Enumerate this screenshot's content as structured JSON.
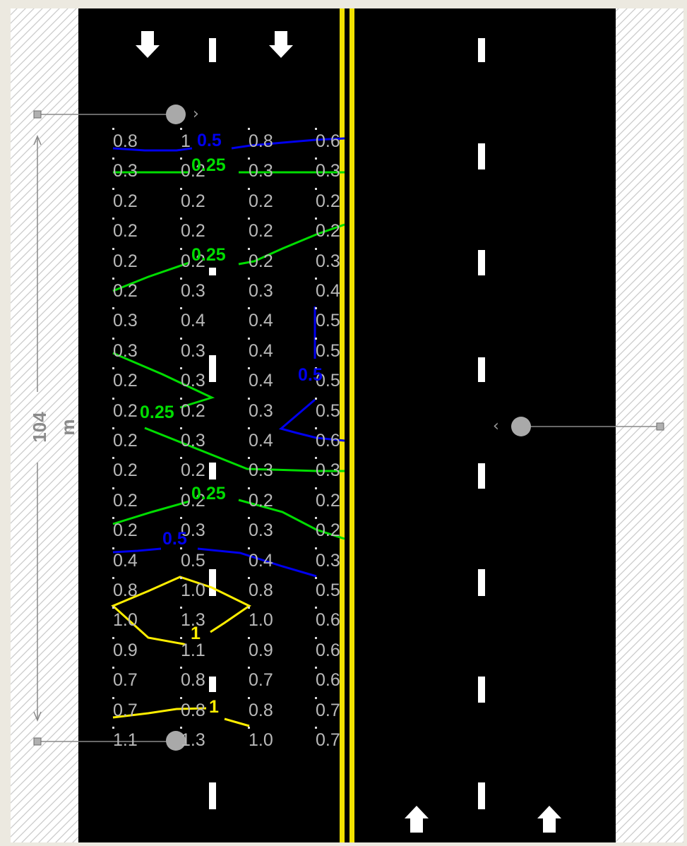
{
  "colors": {
    "road": "#000000",
    "lane_marking": "#ffffff",
    "center_line": "#f2e200",
    "shoulder_hatch": "#c9c9c9",
    "grid_value_text": "#b9b9b9",
    "contour_0_25": "#00dd00",
    "contour_0_5": "#0000ee",
    "contour_1": "#ffee00",
    "dimension": "#8a8a8a"
  },
  "dimension": {
    "label": "104 m"
  },
  "contour_labels": [
    {
      "text": "0.5",
      "level": "0.5"
    },
    {
      "text": "0.25",
      "level": "0.25"
    },
    {
      "text": "0.25",
      "level": "0.25"
    },
    {
      "text": "0.5",
      "level": "0.5"
    },
    {
      "text": "0.25",
      "level": "0.25"
    },
    {
      "text": "0.25",
      "level": "0.25"
    },
    {
      "text": "0.5",
      "level": "0.5"
    },
    {
      "text": "1",
      "level": "1"
    },
    {
      "text": "1",
      "level": "1"
    }
  ],
  "grid_rows": [
    [
      "0.8",
      "1",
      "0.8",
      "0.6"
    ],
    [
      "0.3",
      "0.2",
      "0.3",
      "0.3"
    ],
    [
      "0.2",
      "0.2",
      "0.2",
      "0.2"
    ],
    [
      "0.2",
      "0.2",
      "0.2",
      "0.2"
    ],
    [
      "0.2",
      "0.2",
      "0.2",
      "0.3"
    ],
    [
      "0.2",
      "0.3",
      "0.3",
      "0.4"
    ],
    [
      "0.3",
      "0.4",
      "0.4",
      "0.5"
    ],
    [
      "0.3",
      "0.3",
      "0.4",
      "0.5"
    ],
    [
      "0.2",
      "0.3",
      "0.4",
      "0.5"
    ],
    [
      "0.2",
      "0.2",
      "0.3",
      "0.5"
    ],
    [
      "0.2",
      "0.3",
      "0.4",
      "0.6"
    ],
    [
      "0.2",
      "0.2",
      "0.3",
      "0.3"
    ],
    [
      "0.2",
      "0.2",
      "0.2",
      "0.2"
    ],
    [
      "0.2",
      "0.3",
      "0.3",
      "0.2"
    ],
    [
      "0.4",
      "0.5",
      "0.4",
      "0.3"
    ],
    [
      "0.8",
      "1.0",
      "0.8",
      "0.5"
    ],
    [
      "1.0",
      "1.3",
      "1.0",
      "0.6"
    ],
    [
      "0.9",
      "1.1",
      "0.9",
      "0.6"
    ],
    [
      "0.7",
      "0.8",
      "0.7",
      "0.6"
    ],
    [
      "0.7",
      "0.8",
      "0.8",
      "0.7"
    ],
    [
      "1.1",
      "1.3",
      "1.0",
      "0.7"
    ]
  ]
}
